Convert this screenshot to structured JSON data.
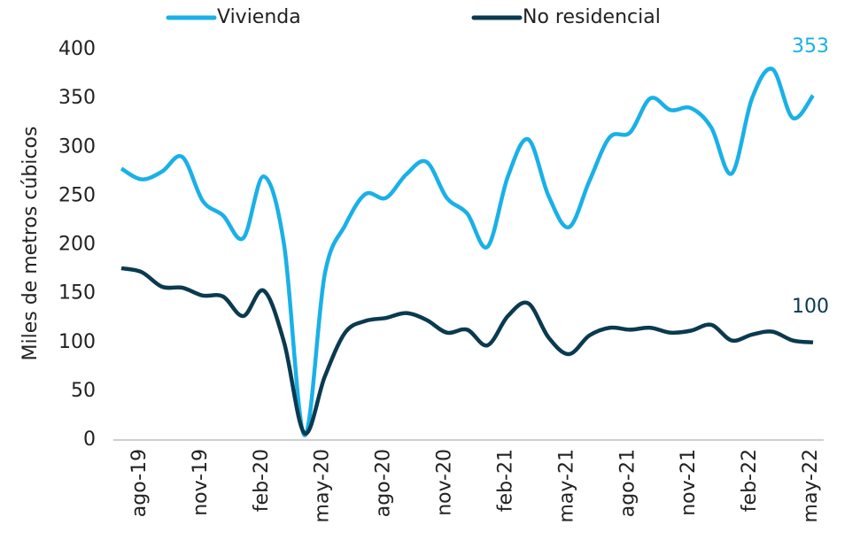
{
  "chart_data": {
    "type": "line",
    "y_label": "Miles de metros cúbicos",
    "categories": [
      null,
      "ago-19",
      null,
      null,
      "nov-19",
      null,
      null,
      "feb-20",
      null,
      null,
      "may-20",
      null,
      null,
      "ago-20",
      null,
      null,
      "nov-20",
      null,
      null,
      "feb-21",
      null,
      null,
      "may-21",
      null,
      null,
      "ago-21",
      null,
      null,
      "nov-21",
      null,
      null,
      "feb-22",
      null,
      null,
      "may-22"
    ],
    "series": [
      {
        "name": "Vivienda",
        "color": "#1ab0e8",
        "values": [
          278,
          267,
          275,
          290,
          245,
          230,
          207,
          270,
          200,
          5,
          170,
          220,
          252,
          248,
          272,
          285,
          248,
          232,
          198,
          270,
          308,
          250,
          218,
          265,
          310,
          315,
          350,
          338,
          340,
          320,
          273,
          350,
          380,
          330,
          353
        ]
      },
      {
        "name": "No residencial",
        "color": "#0a3a4f",
        "values": [
          176,
          172,
          157,
          156,
          148,
          147,
          127,
          153,
          100,
          7,
          65,
          110,
          122,
          125,
          130,
          123,
          110,
          113,
          97,
          127,
          140,
          105,
          88,
          107,
          115,
          113,
          115,
          110,
          112,
          118,
          102,
          108,
          111,
          102,
          100
        ]
      }
    ],
    "ylim": [
      0,
      400
    ],
    "yticks": [
      0,
      50,
      100,
      150,
      200,
      250,
      300,
      350,
      400
    ],
    "grid": false
  }
}
